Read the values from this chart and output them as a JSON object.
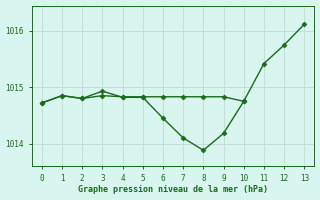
{
  "x": [
    0,
    1,
    2,
    3,
    4,
    5,
    6,
    7,
    8,
    9,
    10,
    11,
    12,
    13
  ],
  "y_line1": [
    1014.72,
    1014.85,
    1014.8,
    1014.85,
    1014.83,
    1014.83,
    1014.83,
    1014.83,
    1014.83,
    1014.83,
    1014.75
  ],
  "x_line1": [
    0,
    1,
    2,
    3,
    4,
    5,
    6,
    7,
    8,
    9,
    10
  ],
  "y_line2": [
    1014.72,
    1014.85,
    1014.8,
    1014.93,
    1014.82,
    1014.82,
    1014.45,
    1014.1,
    1013.88,
    1014.18,
    1014.75,
    1015.42,
    1015.75,
    1016.12
  ],
  "xlabel": "Graphe pression niveau de la mer (hPa)",
  "ylim": [
    1013.6,
    1016.45
  ],
  "yticks": [
    1014,
    1015,
    1016
  ],
  "xticks": [
    0,
    1,
    2,
    3,
    4,
    5,
    6,
    7,
    8,
    9,
    10,
    11,
    12,
    13
  ],
  "line_color": "#1a6b1a",
  "bg_color": "#d8f5f0",
  "grid_color": "#c8dcd8",
  "marker": "D",
  "markersize": 2.5,
  "linewidth": 1.0
}
